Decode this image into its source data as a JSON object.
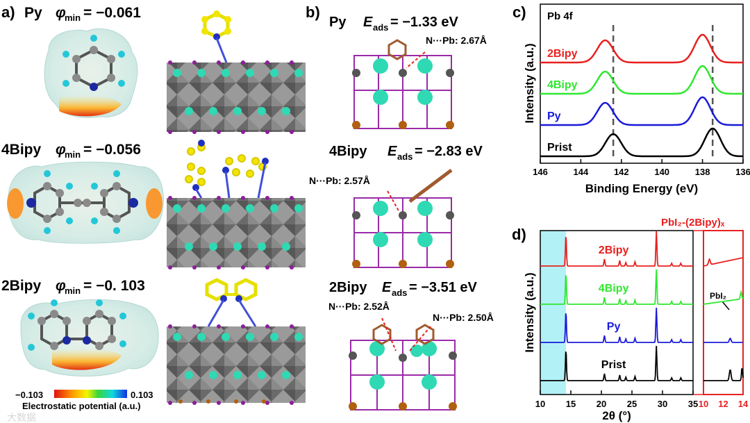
{
  "panel_a": {
    "label": "a)",
    "rows": [
      {
        "mol": "Py",
        "phi_label": "φ",
        "phi_sub": "min",
        "phi_value": "= −0.061"
      },
      {
        "mol": "4Bipy",
        "phi_label": "φ",
        "phi_sub": "min",
        "phi_value": "= −0.056"
      },
      {
        "mol": "2Bipy",
        "phi_label": "φ",
        "phi_sub": "min",
        "phi_value": "= −0. 103"
      }
    ],
    "colorbar": {
      "min": "−0.103",
      "max": "0.103",
      "label": "Electrostatic potential (a.u.)"
    }
  },
  "panel_b": {
    "label": "b)",
    "rows": [
      {
        "mol": "Py",
        "e_label": "E",
        "e_sub": "ads",
        "e_value": " = −1.33 eV",
        "bonds": [
          "N···Pb: 2.67Å"
        ]
      },
      {
        "mol": "4Bipy",
        "e_label": "E",
        "e_sub": "ads",
        "e_value": " = −2.83 eV",
        "bonds": [
          "N···Pb: 2.57Å"
        ]
      },
      {
        "mol": "2Bipy",
        "e_label": "E",
        "e_sub": "ads",
        "e_value": " = −3.51 eV",
        "bonds": [
          "N···Pb: 2.52Å",
          "N···Pb: 2.50Å"
        ]
      }
    ]
  },
  "chart_data": [
    {
      "type": "line",
      "panel_label": "c)",
      "title": "Pb 4f",
      "xlabel": "Binding Energy (eV)",
      "ylabel": "Intensity (a.u.)",
      "xlim": [
        146,
        136
      ],
      "x_reversed": true,
      "xticks": [
        "146",
        "144",
        "142",
        "140",
        "138",
        "136"
      ],
      "reference_lines": [
        142.4,
        137.5
      ],
      "series": [
        {
          "name": "2Bipy",
          "color": "#e8201e",
          "peaks": [
            142.8,
            138.0
          ],
          "offset": 3
        },
        {
          "name": "4Bipy",
          "color": "#2ee82e",
          "peaks": [
            142.8,
            138.0
          ],
          "offset": 2
        },
        {
          "name": "Py",
          "color": "#1a1adb",
          "peaks": [
            142.8,
            138.0
          ],
          "offset": 1
        },
        {
          "name": "Prist",
          "color": "#000000",
          "peaks": [
            142.4,
            137.5
          ],
          "offset": 0
        }
      ]
    },
    {
      "type": "line",
      "panel_label": "d)",
      "xlabel": "2θ (°)",
      "ylabel": "Intensity (a.u.)",
      "xlim": [
        10,
        35
      ],
      "xticks": [
        "10",
        "15",
        "20",
        "25",
        "30",
        "35"
      ],
      "highlight_range": [
        10,
        14.2
      ],
      "inset": {
        "title": "PbI₂-(2Bipy)ₓ",
        "xlim": [
          10,
          14
        ],
        "xticks": [
          "10",
          "12",
          "14"
        ],
        "annotation": "PbI₂"
      },
      "series": [
        {
          "name": "2Bipy",
          "color": "#e8201e",
          "offset": 3
        },
        {
          "name": "4Bipy",
          "color": "#2ee82e",
          "offset": 2
        },
        {
          "name": "Py",
          "color": "#1a1adb",
          "offset": 1
        },
        {
          "name": "Prist",
          "color": "#000000",
          "offset": 0
        }
      ]
    }
  ],
  "watermark": "大数据"
}
